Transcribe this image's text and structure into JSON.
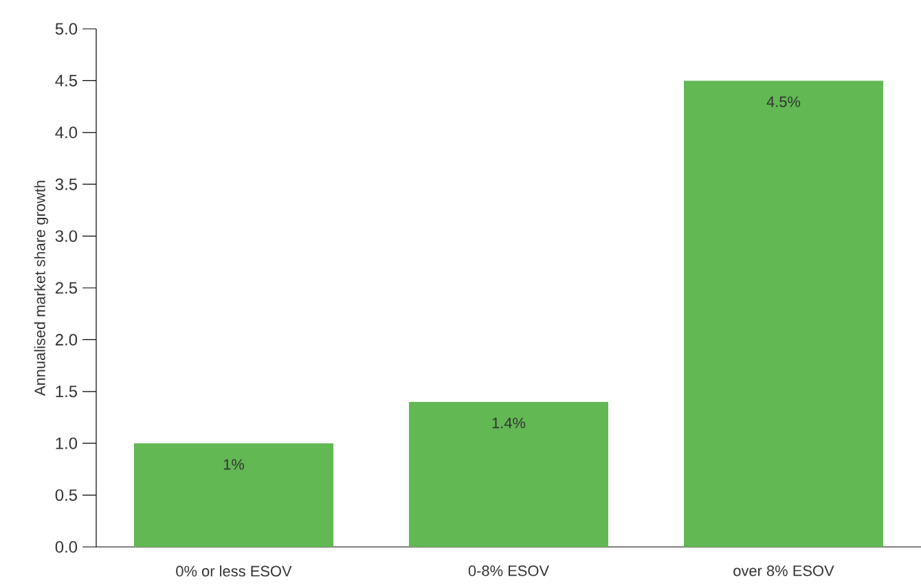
{
  "chart_data": {
    "type": "bar",
    "ylabel": "Annualised market share growth",
    "categories": [
      "0% or less ESOV",
      "0-8% ESOV",
      "over 8% ESOV"
    ],
    "values": [
      1,
      1.4,
      4.5
    ],
    "value_labels": [
      "1%",
      "1.4%",
      "4.5%"
    ],
    "color": "#62b853",
    "ylim": [
      0,
      5
    ],
    "yticks": [
      {
        "value": 0,
        "label": "0.0"
      },
      {
        "value": 0.5,
        "label": "0.5"
      },
      {
        "value": 1,
        "label": "1.0"
      },
      {
        "value": 1.5,
        "label": "1.5"
      },
      {
        "value": 2,
        "label": "2.0"
      },
      {
        "value": 2.5,
        "label": "2.5"
      },
      {
        "value": 3,
        "label": "3.0"
      },
      {
        "value": 3.5,
        "label": "3.5"
      },
      {
        "value": 4,
        "label": "4.0"
      },
      {
        "value": 4.5,
        "label": "4.5"
      },
      {
        "value": 5,
        "label": "5.0"
      }
    ],
    "grid": false
  }
}
